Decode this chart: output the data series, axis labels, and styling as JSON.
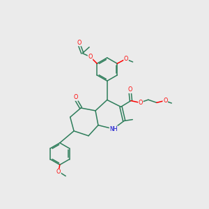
{
  "bg_color": "#ebebeb",
  "bond_color": "#2d7d5a",
  "atom_color_O": "#ff0000",
  "atom_color_N": "#0000cc",
  "line_width": 1.1,
  "font_size": 5.8,
  "xlim": [
    0,
    10
  ],
  "ylim": [
    0,
    10
  ]
}
